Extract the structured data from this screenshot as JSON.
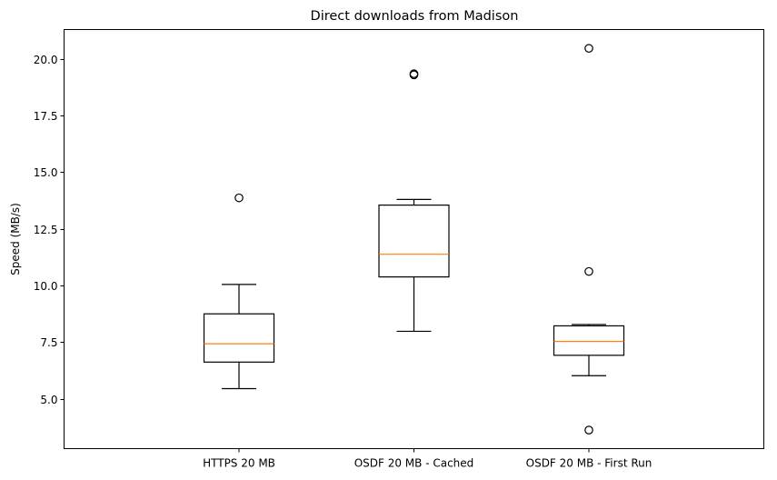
{
  "chart_data": {
    "type": "box",
    "title": "Direct downloads from Madison",
    "xlabel": "",
    "ylabel": "Speed (MB/s)",
    "categories": [
      "HTTPS 20 MB",
      "OSDF 20 MB - Cached",
      "OSDF 20 MB - First Run"
    ],
    "ylim": [
      2.8,
      21.3
    ],
    "yticks": [
      5.0,
      7.5,
      10.0,
      12.5,
      15.0,
      17.5,
      20.0
    ],
    "ytick_labels": [
      "5.0",
      "7.5",
      "10.0",
      "12.5",
      "15.0",
      "17.5",
      "20.0"
    ],
    "grid": false,
    "boxes": [
      {
        "whisker_low": 5.45,
        "q1": 6.62,
        "median": 7.43,
        "q3": 8.75,
        "whisker_high": 10.05,
        "outliers": [
          13.87
        ]
      },
      {
        "whisker_low": 7.98,
        "q1": 10.38,
        "median": 11.38,
        "q3": 13.55,
        "whisker_high": 13.8,
        "outliers": [
          19.3,
          19.35
        ]
      },
      {
        "whisker_low": 6.02,
        "q1": 6.92,
        "median": 7.53,
        "q3": 8.22,
        "whisker_high": 8.28,
        "outliers": [
          20.47,
          10.62,
          3.62
        ]
      }
    ],
    "colors": {
      "box": "#000000",
      "median": "#ff7f0e",
      "frame": "#000000"
    }
  }
}
